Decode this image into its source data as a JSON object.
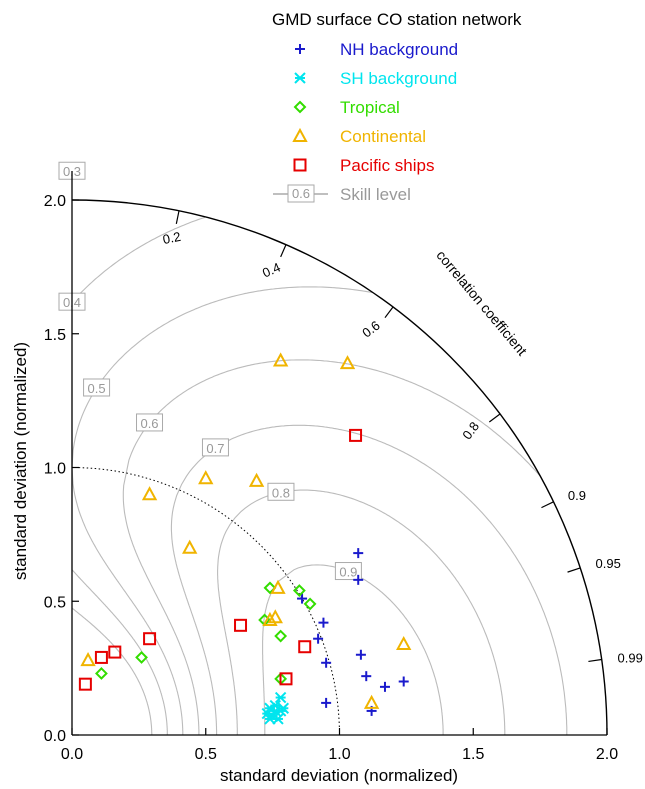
{
  "chart_data": {
    "type": "scatter",
    "subtype": "taylor-diagram",
    "xlabel": "standard deviation (normalized)",
    "ylabel": "standard deviation (normalized)",
    "xlim": [
      0.0,
      2.0
    ],
    "ylim": [
      0.0,
      2.0
    ],
    "x_ticks": [
      "0.0",
      "0.5",
      "1.0",
      "1.5",
      "2.0"
    ],
    "y_ticks": [
      "0.0",
      "0.5",
      "1.0",
      "1.5",
      "2.0"
    ],
    "correlation_label": "correlation coefficient",
    "correlation_ticks": [
      "0.2",
      "0.4",
      "0.6",
      "0.8",
      "0.9",
      "0.95",
      "0.99"
    ],
    "skill_levels": [
      "0.3",
      "0.4",
      "0.5",
      "0.6",
      "0.7",
      "0.8",
      "0.9"
    ],
    "reference_std": 1.0,
    "legend": {
      "title": "GMD surface CO station network",
      "position": "top-right",
      "skill_sample": "0.6",
      "skill_text": "Skill level",
      "skill_color": "#999999"
    },
    "series": [
      {
        "name": "NH background",
        "marker": "plus",
        "color": "#1a1acc",
        "points": [
          [
            1.07,
            0.68
          ],
          [
            1.07,
            0.58
          ],
          [
            0.86,
            0.51
          ],
          [
            0.94,
            0.42
          ],
          [
            0.92,
            0.36
          ],
          [
            1.08,
            0.3
          ],
          [
            0.95,
            0.27
          ],
          [
            1.1,
            0.22
          ],
          [
            1.17,
            0.18
          ],
          [
            1.24,
            0.2
          ],
          [
            0.95,
            0.12
          ],
          [
            1.12,
            0.09
          ]
        ]
      },
      {
        "name": "SH background",
        "marker": "asterisk",
        "color": "#00e5ee",
        "points": [
          [
            0.78,
            0.14
          ],
          [
            0.76,
            0.11
          ],
          [
            0.73,
            0.08
          ],
          [
            0.75,
            0.07
          ],
          [
            0.74,
            0.06
          ],
          [
            0.78,
            0.09
          ],
          [
            0.77,
            0.06
          ],
          [
            0.76,
            0.09
          ],
          [
            0.79,
            0.1
          ],
          [
            0.74,
            0.1
          ]
        ]
      },
      {
        "name": "Tropical",
        "marker": "diamond",
        "color": "#33dd00",
        "points": [
          [
            0.74,
            0.55
          ],
          [
            0.85,
            0.54
          ],
          [
            0.89,
            0.49
          ],
          [
            0.72,
            0.43
          ],
          [
            0.78,
            0.37
          ],
          [
            0.26,
            0.29
          ],
          [
            0.11,
            0.23
          ],
          [
            0.78,
            0.21
          ]
        ]
      },
      {
        "name": "Continental",
        "marker": "triangle",
        "color": "#f0b400",
        "points": [
          [
            0.78,
            1.4
          ],
          [
            1.03,
            1.39
          ],
          [
            0.5,
            0.96
          ],
          [
            0.69,
            0.95
          ],
          [
            0.29,
            0.9
          ],
          [
            0.44,
            0.7
          ],
          [
            0.77,
            0.55
          ],
          [
            0.76,
            0.44
          ],
          [
            0.74,
            0.43
          ],
          [
            1.24,
            0.34
          ],
          [
            1.12,
            0.12
          ],
          [
            0.06,
            0.28
          ]
        ]
      },
      {
        "name": "Pacific ships",
        "marker": "square",
        "color": "#e60000",
        "points": [
          [
            1.06,
            1.12
          ],
          [
            0.63,
            0.41
          ],
          [
            0.29,
            0.36
          ],
          [
            0.87,
            0.33
          ],
          [
            0.16,
            0.31
          ],
          [
            0.11,
            0.29
          ],
          [
            0.8,
            0.21
          ],
          [
            0.05,
            0.19
          ]
        ]
      }
    ]
  }
}
